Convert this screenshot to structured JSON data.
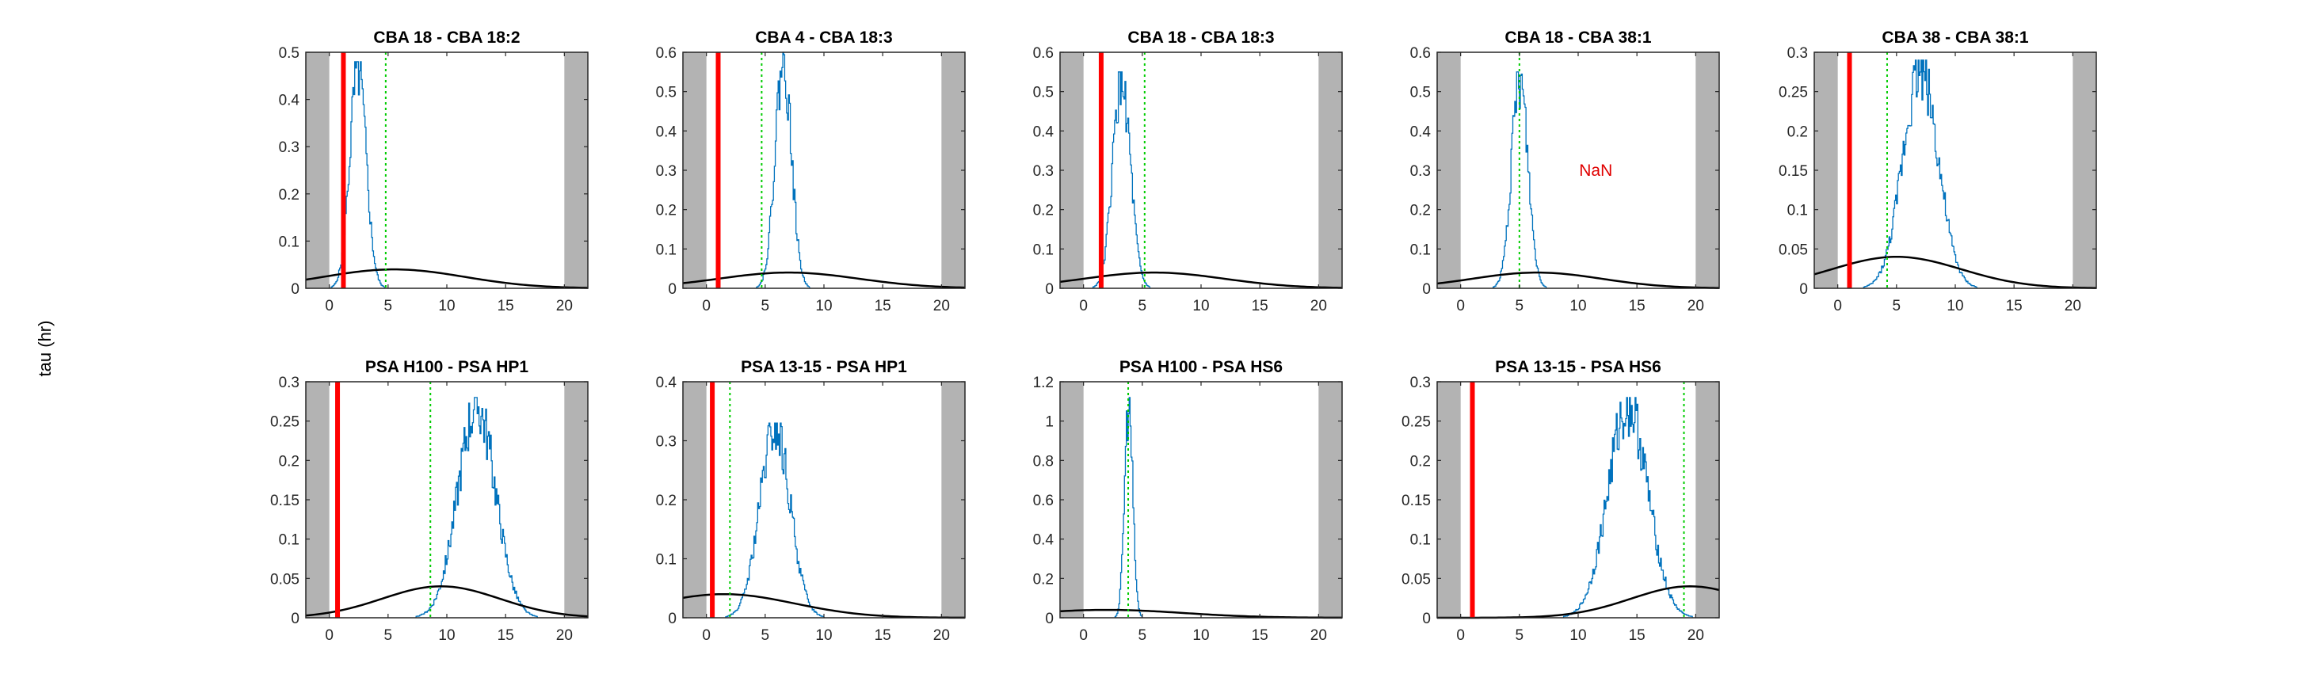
{
  "figure": {
    "ylabel": "tau (hr)",
    "colors": {
      "histogram": "#0072BD",
      "threshold": "#ff0000",
      "marker": "#00cc00",
      "curve": "#000000",
      "shade": "#b3b3b3",
      "axes": "#262626",
      "nan": "#e00000"
    }
  },
  "chart_data": [
    {
      "type": "histogram",
      "title": "CBA 18 - CBA 18:2",
      "xlim": [
        -2,
        22
      ],
      "ylim": [
        0,
        0.5
      ],
      "yticks": [
        0,
        0.1,
        0.2,
        0.3,
        0.4,
        0.5
      ],
      "xticks": [
        0,
        5,
        10,
        15,
        20
      ],
      "shade_ranges": [
        [
          -2,
          0
        ],
        [
          20,
          22
        ]
      ],
      "red_line_x": 1.2,
      "green_line_x": 4.8,
      "hist_peak": {
        "center": 2.4,
        "height": 0.48,
        "width": 0.7
      },
      "curve": {
        "peak_x": 5.5,
        "peak_y": 0.04,
        "spread": 12
      },
      "annotation": ""
    },
    {
      "type": "histogram",
      "title": "CBA 4 - CBA 18:3",
      "xlim": [
        -2,
        22
      ],
      "ylim": [
        0,
        0.6
      ],
      "yticks": [
        0,
        0.1,
        0.2,
        0.3,
        0.4,
        0.5,
        0.6
      ],
      "xticks": [
        0,
        5,
        10,
        15,
        20
      ],
      "shade_ranges": [
        [
          -2,
          0
        ],
        [
          20,
          22
        ]
      ],
      "red_line_x": 1.0,
      "green_line_x": 4.7,
      "hist_peak": {
        "center": 6.5,
        "height": 0.6,
        "width": 0.7
      },
      "curve": {
        "peak_x": 7.0,
        "peak_y": 0.04,
        "spread": 12
      },
      "annotation": ""
    },
    {
      "type": "histogram",
      "title": "CBA 18 - CBA 18:3",
      "xlim": [
        -2,
        22
      ],
      "ylim": [
        0,
        0.6
      ],
      "yticks": [
        0,
        0.1,
        0.2,
        0.3,
        0.4,
        0.5,
        0.6
      ],
      "xticks": [
        0,
        5,
        10,
        15,
        20
      ],
      "shade_ranges": [
        [
          -2,
          0
        ],
        [
          20,
          22
        ]
      ],
      "red_line_x": 1.5,
      "green_line_x": 5.2,
      "hist_peak": {
        "center": 3.2,
        "height": 0.55,
        "width": 0.75
      },
      "curve": {
        "peak_x": 6.0,
        "peak_y": 0.04,
        "spread": 12
      },
      "annotation": ""
    },
    {
      "type": "histogram",
      "title": "CBA 18 - CBA 38:1",
      "xlim": [
        -2,
        22
      ],
      "ylim": [
        0,
        0.6
      ],
      "yticks": [
        0,
        0.1,
        0.2,
        0.3,
        0.4,
        0.5,
        0.6
      ],
      "xticks": [
        0,
        5,
        10,
        15,
        20
      ],
      "shade_ranges": [
        [
          -2,
          0
        ],
        [
          20,
          22
        ]
      ],
      "red_line_x": null,
      "green_line_x": 5.0,
      "hist_peak": {
        "center": 5.0,
        "height": 0.55,
        "width": 0.7
      },
      "curve": {
        "peak_x": 6.5,
        "peak_y": 0.04,
        "spread": 11
      },
      "annotation": "NaN",
      "annotation_pos": [
        11.5,
        0.3
      ]
    },
    {
      "type": "histogram",
      "title": "CBA 38 - CBA 38:1",
      "xlim": [
        -2,
        22
      ],
      "ylim": [
        0,
        0.3
      ],
      "yticks": [
        0,
        0.05,
        0.1,
        0.15,
        0.2,
        0.25,
        0.3
      ],
      "xticks": [
        0,
        5,
        10,
        15,
        20
      ],
      "shade_ranges": [
        [
          -2,
          0
        ],
        [
          20,
          22
        ]
      ],
      "red_line_x": 1.0,
      "green_line_x": 4.2,
      "hist_peak": {
        "center": 7.0,
        "height": 0.29,
        "width": 1.5
      },
      "curve": {
        "peak_x": 5.0,
        "peak_y": 0.04,
        "spread": 11
      },
      "annotation": ""
    },
    {
      "type": "histogram",
      "title": "PSA H100 - PSA HP1",
      "xlim": [
        -2,
        22
      ],
      "ylim": [
        0,
        0.3
      ],
      "yticks": [
        0,
        0.05,
        0.1,
        0.15,
        0.2,
        0.25,
        0.3
      ],
      "xticks": [
        0,
        5,
        10,
        15,
        20
      ],
      "shade_ranges": [
        [
          -2,
          0
        ],
        [
          20,
          22
        ]
      ],
      "red_line_x": 0.7,
      "green_line_x": 8.6,
      "hist_peak": {
        "center": 12.5,
        "height": 0.28,
        "width": 1.6
      },
      "curve": {
        "peak_x": 9.5,
        "peak_y": 0.04,
        "spread": 10
      },
      "annotation": ""
    },
    {
      "type": "histogram",
      "title": "PSA 13-15 - PSA HP1",
      "xlim": [
        -2,
        22
      ],
      "ylim": [
        0,
        0.4
      ],
      "yticks": [
        0,
        0.1,
        0.2,
        0.3,
        0.4
      ],
      "xticks": [
        0,
        5,
        10,
        15,
        20
      ],
      "shade_ranges": [
        [
          -2,
          0
        ],
        [
          20,
          22
        ]
      ],
      "red_line_x": 0.5,
      "green_line_x": 2.0,
      "hist_peak": {
        "center": 5.8,
        "height": 0.33,
        "width": 1.3
      },
      "curve": {
        "peak_x": 1.5,
        "peak_y": 0.04,
        "spread": 12
      },
      "annotation": ""
    },
    {
      "type": "histogram",
      "title": "PSA H100 - PSA HS6",
      "xlim": [
        -2,
        22
      ],
      "ylim": [
        0,
        1.2
      ],
      "yticks": [
        0,
        0.2,
        0.4,
        0.6,
        0.8,
        1,
        1.2
      ],
      "xticks": [
        0,
        5,
        10,
        15,
        20
      ],
      "shade_ranges": [
        [
          -2,
          0
        ],
        [
          20,
          22
        ]
      ],
      "red_line_x": null,
      "green_line_x": 3.8,
      "hist_peak": {
        "center": 3.8,
        "height": 1.12,
        "width": 0.35
      },
      "curve": {
        "peak_x": 2.0,
        "peak_y": 0.04,
        "spread": 13
      },
      "annotation": ""
    },
    {
      "type": "histogram",
      "title": "PSA 13-15 - PSA HS6",
      "xlim": [
        -2,
        22
      ],
      "ylim": [
        0,
        0.3
      ],
      "yticks": [
        0,
        0.05,
        0.1,
        0.15,
        0.2,
        0.25,
        0.3
      ],
      "xticks": [
        0,
        5,
        10,
        15,
        20
      ],
      "shade_ranges": [
        [
          -2,
          0
        ],
        [
          20,
          22
        ]
      ],
      "red_line_x": 1.0,
      "green_line_x": 19.0,
      "hist_peak": {
        "center": 14.2,
        "height": 0.28,
        "width": 1.7
      },
      "curve": {
        "peak_x": 19.5,
        "peak_y": 0.04,
        "spread": 10
      },
      "annotation": ""
    }
  ]
}
